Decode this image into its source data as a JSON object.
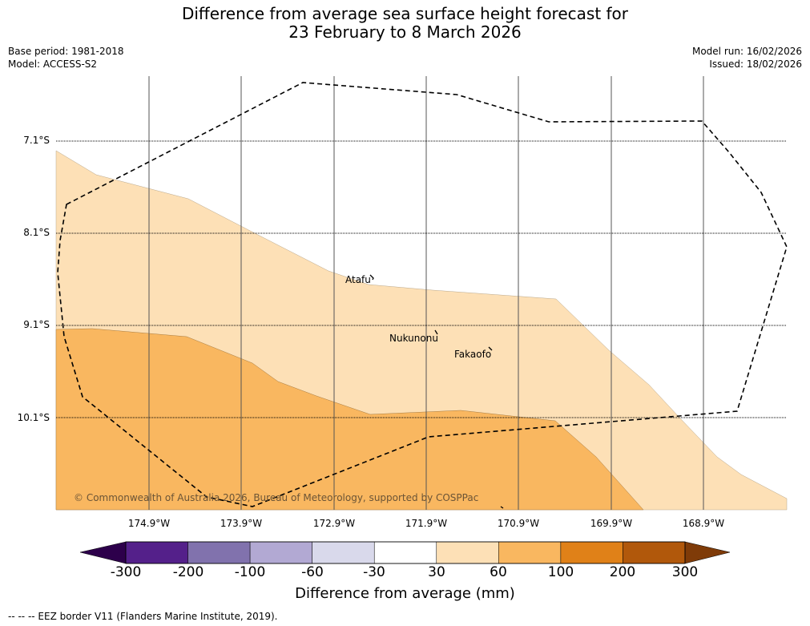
{
  "header": {
    "title_line1": "Difference from average sea surface height forecast for",
    "title_line2": "23 February to 8 March 2026",
    "base_period": "Base period: 1981-2018",
    "model": "Model: ACCESS-S2",
    "model_run": "Model run: 16/02/2026",
    "issued": "Issued: 18/02/2026"
  },
  "map": {
    "latitudes": [
      "7.1°S",
      "8.1°S",
      "9.1°S",
      "10.1°S"
    ],
    "longitudes": [
      "174.9°W",
      "173.9°W",
      "172.9°W",
      "171.9°W",
      "170.9°W",
      "169.9°W",
      "168.9°W"
    ],
    "places": [
      "Atafu",
      "Nukunonu",
      "Fakaofo"
    ],
    "copyright": "© Commonwealth of Australia 2026, Bureau of Meteorology, supported by COSPPac"
  },
  "colorbar": {
    "title": "Difference from average (mm)",
    "ticks": [
      "-300",
      "-200",
      "-100",
      "-60",
      "-30",
      "30",
      "60",
      "100",
      "200",
      "300"
    ],
    "colors": [
      "#54208a",
      "#8172ad",
      "#b2a9d3",
      "#d9d9eb",
      "#ffffff",
      "#fde0b6",
      "#f9b760",
      "#e08118",
      "#b1580b"
    ],
    "extend_low_color": "#2d004b",
    "extend_high_color": "#7f3b08"
  },
  "legend_note": "-- -- -- EEZ border V11 (Flanders Marine Institute, 2019).",
  "colors": {
    "band_light": "#fde0b6",
    "band_medium": "#f9b760"
  }
}
